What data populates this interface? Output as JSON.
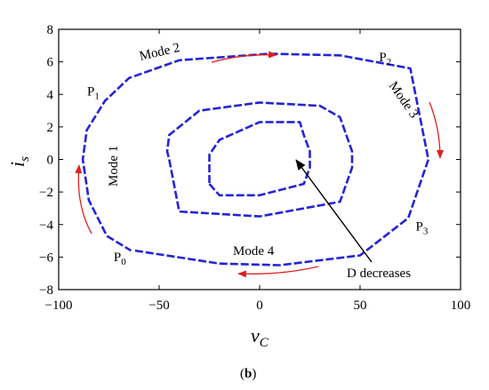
{
  "chart_data": {
    "type": "line",
    "title": "",
    "xlabel": "v",
    "xlabel_sub": "C",
    "ylabel": "i",
    "ylabel_sub": "s",
    "xlim": [
      -100,
      100
    ],
    "ylim": [
      -8,
      8
    ],
    "xticks": [
      -100,
      -50,
      0,
      50,
      100
    ],
    "yticks": [
      -8,
      -6,
      -4,
      -2,
      0,
      2,
      4,
      6,
      8
    ],
    "x_tick_labels": [
      "−100",
      "−50",
      "0",
      "50",
      "100"
    ],
    "y_tick_labels": [
      "−8",
      "−6",
      "−4",
      "−2",
      "0",
      "2",
      "4",
      "6",
      "8"
    ],
    "grid": false,
    "series": [
      {
        "x": [
          -62,
          -20,
          10,
          50,
          74,
          84,
          75,
          40,
          5,
          -40,
          -65,
          -77,
          -86,
          -88,
          -85,
          -76,
          -64
        ],
        "y": [
          -5.6,
          -6.4,
          -6.5,
          -5.9,
          -3.6,
          0.0,
          5.6,
          6.4,
          6.5,
          6.1,
          5.0,
          3.6,
          1.8,
          0.0,
          -2.5,
          -4.7,
          -5.6
        ]
      },
      {
        "x": [
          -45,
          -40,
          0,
          40,
          46,
          46,
          40,
          30,
          0,
          -30,
          -45,
          -46,
          -45
        ],
        "y": [
          0.0,
          -3.2,
          -3.5,
          -2.6,
          -0.5,
          0.5,
          2.6,
          3.3,
          3.5,
          3.0,
          1.5,
          0.5,
          0.0
        ]
      },
      {
        "x": [
          -25,
          -20,
          0,
          22,
          25,
          25,
          22,
          20,
          0,
          -20,
          -25,
          -25
        ],
        "y": [
          -1.5,
          -2.2,
          -2.2,
          -1.5,
          -0.5,
          0.5,
          1.5,
          2.3,
          2.3,
          1.2,
          0.3,
          -1.5
        ]
      }
    ],
    "points": [
      {
        "label": "P",
        "sub": "0",
        "x": -62,
        "y": -5.6
      },
      {
        "label": "P",
        "sub": "1",
        "x": -77,
        "y": 3.6
      },
      {
        "label": "P",
        "sub": "2",
        "x": 63,
        "y": 5.6
      },
      {
        "label": "P",
        "sub": "3",
        "x": 75,
        "y": -3.6
      }
    ],
    "annotations": [
      "Mode 1",
      "Mode 2",
      "Mode 3",
      "Mode 4",
      "D decreases"
    ],
    "caption": "(b)",
    "colors": {
      "curve": "#2424d6",
      "arrows": "#e02020",
      "axis": "#000000"
    }
  }
}
